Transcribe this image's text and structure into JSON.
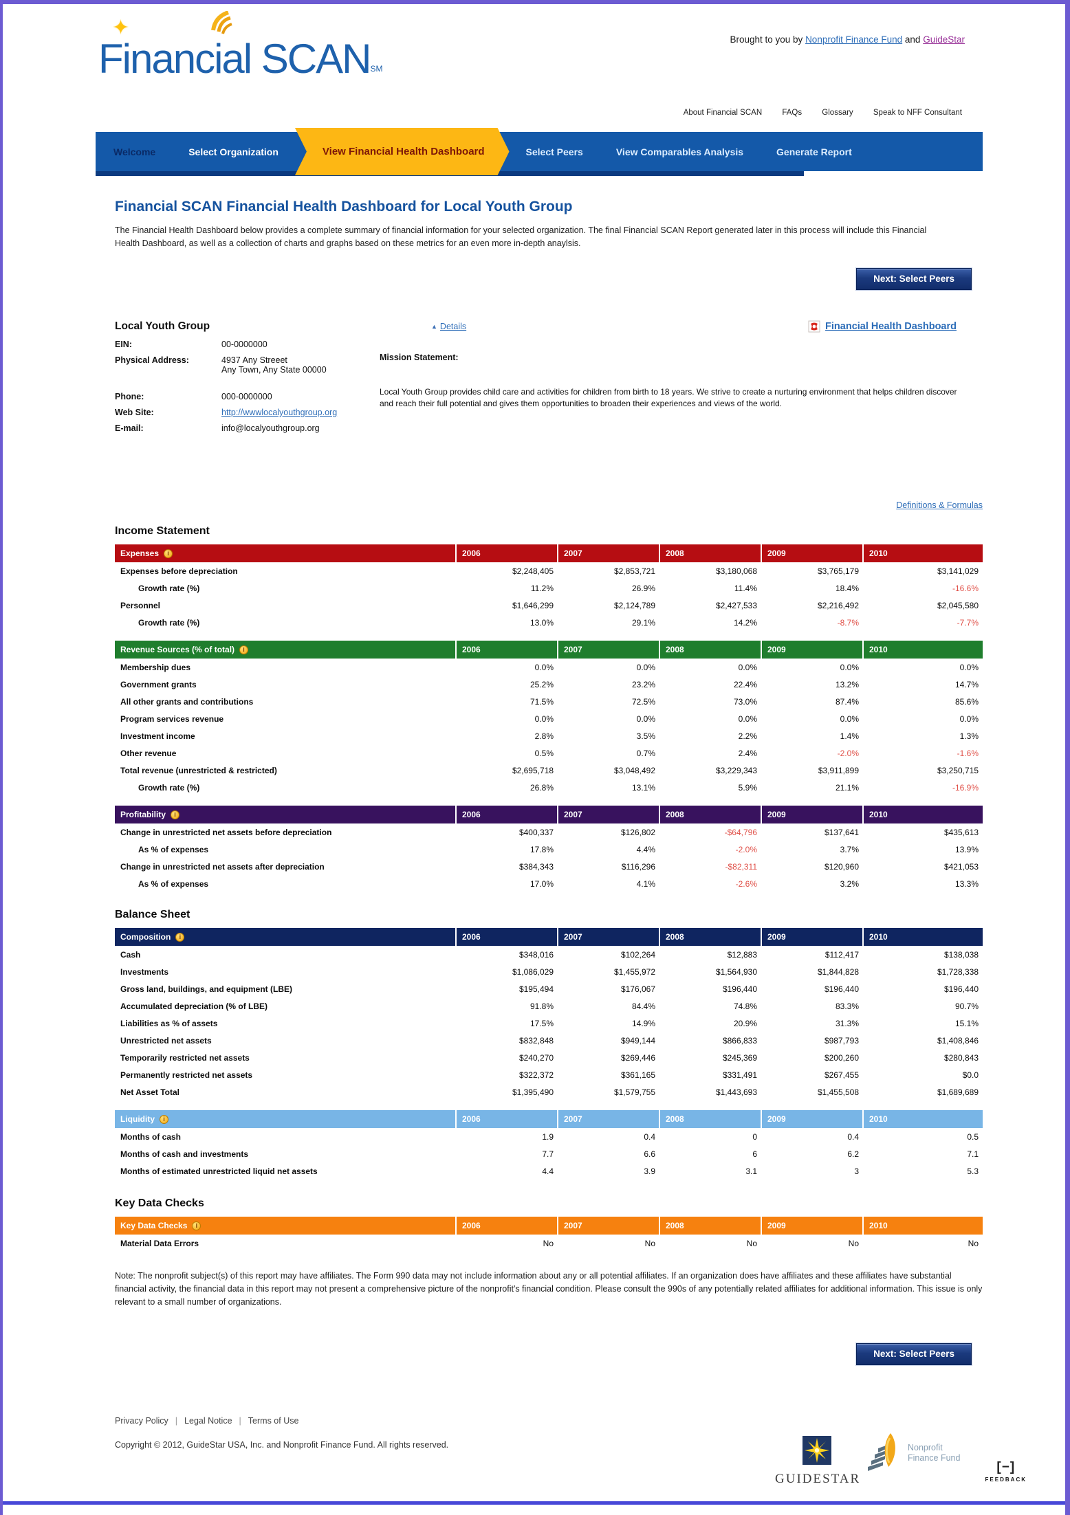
{
  "brand": {
    "logo_text": "Financial SCAN",
    "logo_sm": "SM",
    "tagline_prefix": "Brought to you by",
    "link_nff": "Nonprofit Finance Fund",
    "tagline_and": "and",
    "link_gs": "GuideStar"
  },
  "utility": [
    "About Financial SCAN",
    "FAQs",
    "Glossary",
    "Speak to NFF Consultant"
  ],
  "nav": {
    "welcome": "Welcome",
    "select_org": "Select Organization",
    "active": "View Financial Health Dashboard",
    "select_peers": "Select Peers",
    "comparables": "View Comparables Analysis",
    "generate": "Generate Report"
  },
  "page": {
    "title": "Financial SCAN Financial Health Dashboard for Local Youth Group",
    "intro": "The Financial Health Dashboard below provides a complete summary of financial information for your selected organization. The final Financial SCAN Report generated later in this process will include this Financial Health Dashboard, as well as a collection of charts and graphs based on these metrics for an even more in-depth anaylsis.",
    "next_button": "Next: Select Peers",
    "definitions_link": "Definitions & Formulas"
  },
  "org": {
    "name": "Local Youth Group",
    "ein_label": "EIN:",
    "ein": "00-0000000",
    "addr_label": "Physical Address:",
    "addr1": "4937 Any Streeet",
    "addr2": "Any Town, Any State 00000",
    "phone_label": "Phone:",
    "phone": "000-0000000",
    "web_label": "Web Site:",
    "web": "http://wwwlocalyouthgroup.org",
    "email_label": "E-mail:",
    "email": "info@localyouthgroup.org",
    "details_link": "Details",
    "mission_label": "Mission Statement:",
    "mission_text": "Local Youth Group  provides child care and activities for children from birth to 18 years. We strive to create a nurturing environment that helps children discover and reach their full potential and gives them opportunities to broaden their experiences and views of the world.",
    "pdf_link": "Financial Health Dashboard"
  },
  "headings": {
    "income": "Income Statement",
    "balance": "Balance Sheet",
    "checks": "Key Data Checks"
  },
  "years": [
    "2006",
    "2007",
    "2008",
    "2009",
    "2010"
  ],
  "tables": {
    "expenses": {
      "title": "Expenses",
      "color": "#b60d12",
      "rows": [
        {
          "label": "Expenses before depreciation",
          "indent": 0,
          "values": [
            "$2,248,405",
            "$2,853,721",
            "$3,180,068",
            "$3,765,179",
            "$3,141,029"
          ]
        },
        {
          "label": "Growth rate (%)",
          "indent": 1,
          "values": [
            "11.2%",
            "26.9%",
            "11.4%",
            "18.4%",
            "-16.6%"
          ]
        },
        {
          "label": "Personnel",
          "indent": 0,
          "values": [
            "$1,646,299",
            "$2,124,789",
            "$2,427,533",
            "$2,216,492",
            "$2,045,580"
          ]
        },
        {
          "label": "Growth rate (%)",
          "indent": 1,
          "values": [
            "13.0%",
            "29.1%",
            "14.2%",
            "-8.7%",
            "-7.7%"
          ]
        }
      ]
    },
    "revenue": {
      "title": "Revenue Sources (% of total)",
      "color": "#1f7e2d",
      "rows": [
        {
          "label": "Membership dues",
          "indent": 0,
          "values": [
            "0.0%",
            "0.0%",
            "0.0%",
            "0.0%",
            "0.0%"
          ]
        },
        {
          "label": "Government grants",
          "indent": 0,
          "values": [
            "25.2%",
            "23.2%",
            "22.4%",
            "13.2%",
            "14.7%"
          ]
        },
        {
          "label": "All other grants and contributions",
          "indent": 0,
          "values": [
            "71.5%",
            "72.5%",
            "73.0%",
            "87.4%",
            "85.6%"
          ]
        },
        {
          "label": "Program services revenue",
          "indent": 0,
          "values": [
            "0.0%",
            "0.0%",
            "0.0%",
            "0.0%",
            "0.0%"
          ]
        },
        {
          "label": "Investment income",
          "indent": 0,
          "values": [
            "2.8%",
            "3.5%",
            "2.2%",
            "1.4%",
            "1.3%"
          ]
        },
        {
          "label": "Other revenue",
          "indent": 0,
          "values": [
            "0.5%",
            "0.7%",
            "2.4%",
            "-2.0%",
            "-1.6%"
          ]
        },
        {
          "label": "Total revenue (unrestricted & restricted)",
          "indent": 0,
          "values": [
            "$2,695,718",
            "$3,048,492",
            "$3,229,343",
            "$3,911,899",
            "$3,250,715"
          ]
        },
        {
          "label": "Growth rate (%)",
          "indent": 1,
          "values": [
            "26.8%",
            "13.1%",
            "5.9%",
            "21.1%",
            "-16.9%"
          ]
        }
      ]
    },
    "profitability": {
      "title": "Profitability",
      "color": "#38125e",
      "rows": [
        {
          "label": "Change in unrestricted net assets before depreciation",
          "indent": 0,
          "values": [
            "$400,337",
            "$126,802",
            "-$64,796",
            "$137,641",
            "$435,613"
          ]
        },
        {
          "label": "As % of expenses",
          "indent": 1,
          "values": [
            "17.8%",
            "4.4%",
            "-2.0%",
            "3.7%",
            "13.9%"
          ]
        },
        {
          "label": "Change in unrestricted net assets after depreciation",
          "indent": 0,
          "values": [
            "$384,343",
            "$116,296",
            "-$82,311",
            "$120,960",
            "$421,053"
          ]
        },
        {
          "label": "As % of expenses",
          "indent": 1,
          "values": [
            "17.0%",
            "4.1%",
            "-2.6%",
            "3.2%",
            "13.3%"
          ]
        }
      ]
    },
    "composition": {
      "title": "Composition",
      "color": "#0f2560",
      "rows": [
        {
          "label": "Cash",
          "indent": 0,
          "values": [
            "$348,016",
            "$102,264",
            "$12,883",
            "$112,417",
            "$138,038"
          ]
        },
        {
          "label": "Investments",
          "indent": 0,
          "values": [
            "$1,086,029",
            "$1,455,972",
            "$1,564,930",
            "$1,844,828",
            "$1,728,338"
          ]
        },
        {
          "label": "Gross land, buildings, and equipment (LBE)",
          "indent": 0,
          "values": [
            "$195,494",
            "$176,067",
            "$196,440",
            "$196,440",
            "$196,440"
          ]
        },
        {
          "label": "Accumulated depreciation (% of LBE)",
          "indent": 0,
          "values": [
            "91.8%",
            "84.4%",
            "74.8%",
            "83.3%",
            "90.7%"
          ]
        },
        {
          "label": "Liabilities as % of assets",
          "indent": 0,
          "values": [
            "17.5%",
            "14.9%",
            "20.9%",
            "31.3%",
            "15.1%"
          ]
        },
        {
          "label": "Unrestricted net assets",
          "indent": 0,
          "values": [
            "$832,848",
            "$949,144",
            "$866,833",
            "$987,793",
            "$1,408,846"
          ]
        },
        {
          "label": "Temporarily restricted net assets",
          "indent": 0,
          "values": [
            "$240,270",
            "$269,446",
            "$245,369",
            "$200,260",
            "$280,843"
          ]
        },
        {
          "label": "Permanently restricted net assets",
          "indent": 0,
          "values": [
            "$322,372",
            "$361,165",
            "$331,491",
            "$267,455",
            "$0.0"
          ]
        },
        {
          "label": "Net Asset Total",
          "indent": 0,
          "values": [
            "$1,395,490",
            "$1,579,755",
            "$1,443,693",
            "$1,455,508",
            "$1,689,689"
          ]
        }
      ]
    },
    "liquidity": {
      "title": "Liquidity",
      "color": "#78b5e6",
      "rows": [
        {
          "label": "Months of cash",
          "indent": 0,
          "values": [
            "1.9",
            "0.4",
            "0",
            "0.4",
            "0.5"
          ]
        },
        {
          "label": "Months of cash and investments",
          "indent": 0,
          "values": [
            "7.7",
            "6.6",
            "6",
            "6.2",
            "7.1"
          ]
        },
        {
          "label": "Months of estimated unrestricted liquid net assets",
          "indent": 0,
          "values": [
            "4.4",
            "3.9",
            "3.1",
            "3",
            "5.3"
          ]
        }
      ]
    },
    "key_checks": {
      "title": "Key Data Checks",
      "color": "#f6810f",
      "rows": [
        {
          "label": "Material Data Errors",
          "indent": 0,
          "values": [
            "No",
            "No",
            "No",
            "No",
            "No"
          ]
        }
      ]
    }
  },
  "note": "Note: The nonprofit subject(s) of this report may have affiliates. The Form 990 data may not include information about any or all potential affiliates. If an organization does have affiliates and these affiliates have substantial financial activity, the financial data in this report may not present a comprehensive picture of the nonprofit's financial condition. Please consult the 990s of any potentially related affiliates for additional information. This issue is only relevant to a small number of organizations.",
  "footer": {
    "privacy": "Privacy Policy",
    "legal": "Legal Notice",
    "terms": "Terms of Use",
    "copyright": "Copyright © 2012, GuideStar USA, Inc. and Nonprofit Finance Fund. All rights reserved.",
    "guidestar_text": "GUIDESTAR",
    "nff_line1": "Nonprofit",
    "nff_line2": "Finance Fund",
    "feedback": "FEEDBACK"
  }
}
